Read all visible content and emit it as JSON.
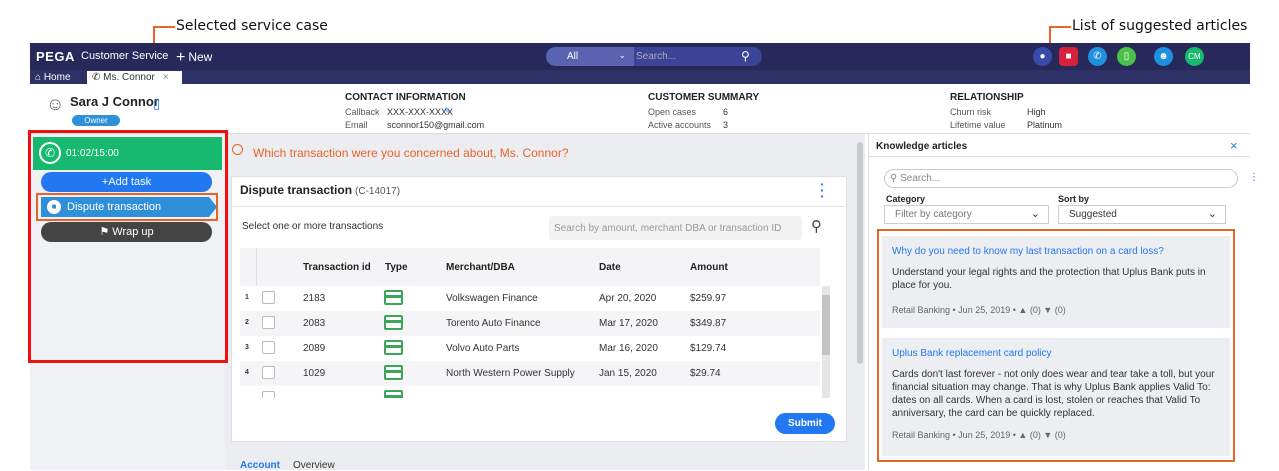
{
  "callouts": {
    "selected_case": "Selected service case",
    "suggested_articles": "List of suggested articles"
  },
  "topbar": {
    "logo": "PEGA",
    "app_name": "Customer Service",
    "new_label": "New",
    "search_scope": "All",
    "search_placeholder": "Search...",
    "user_initials": "CM"
  },
  "tabs": {
    "home": "Home",
    "customer": "Ms. Connor"
  },
  "customer": {
    "name": "Sara J Connor",
    "badge": "Owner"
  },
  "contact": {
    "heading": "CONTACT INFORMATION",
    "callback_label": "Callback",
    "callback_value": "XXX-XXX-XXXX",
    "email_label": "Email",
    "email_value": "sconnor150@gmail.com"
  },
  "summary": {
    "heading": "CUSTOMER SUMMARY",
    "open_cases_label": "Open cases",
    "open_cases_value": "6",
    "active_accounts_label": "Active accounts",
    "active_accounts_value": "3"
  },
  "relationship": {
    "heading": "RELATIONSHIP",
    "churn_label": "Churn risk",
    "churn_value": "High",
    "lifetime_label": "Lifetime value",
    "lifetime_value": "Platinum"
  },
  "interaction": {
    "timer": "01:02/15:00",
    "add_task": "+Add task",
    "case_name": "Dispute transaction",
    "wrap_up": "Wrap up"
  },
  "main": {
    "prompt": "Which transaction were you concerned about,  Ms. Connor?",
    "case_title": "Dispute transaction",
    "case_id": "(C-14017)",
    "select_label": "Select one or more transactions",
    "search_placeholder": "Search by amount, merchant DBA or transaction ID",
    "columns": [
      "Transaction id",
      "Type",
      "Merchant/DBA",
      "Date",
      "Amount"
    ],
    "rows": [
      {
        "n": "1",
        "id": "2183",
        "merchant": "Volkswagen Finance",
        "date": "Apr 20, 2020",
        "amount": "$259.97"
      },
      {
        "n": "2",
        "id": "2083",
        "merchant": "Torento Auto Finance",
        "date": "Mar 17, 2020",
        "amount": "$349.87"
      },
      {
        "n": "3",
        "id": "2089",
        "merchant": "Volvo Auto Parts",
        "date": "Mar 16, 2020",
        "amount": "$129.74"
      },
      {
        "n": "4",
        "id": "1029",
        "merchant": "North Western Power Supply",
        "date": "Jan 15, 2020",
        "amount": "$29.74"
      }
    ],
    "submit": "Submit",
    "bottom_tabs": [
      "Account",
      "Overview"
    ]
  },
  "knowledge": {
    "title": "Knowledge articles",
    "search_placeholder": "Search...",
    "category_label": "Category",
    "category_placeholder": "Filter by category",
    "sort_label": "Sort by",
    "sort_value": "Suggested",
    "articles": [
      {
        "title": "Why do you need to know my last transaction on a card loss?",
        "body": "Understand your legal rights and the protection that Uplus Bank puts in place for you.",
        "meta": "Retail Banking • Jun 25, 2019 •",
        "likes": "(0)",
        "dislikes": "(0)"
      },
      {
        "title": "Uplus Bank replacement card policy",
        "body": "Cards don't last forever - not only does wear and tear take a toll, but your financial situation may change. That is why Uplus Bank applies Valid To: dates on all cards. When a card is lost, stolen or reaches that Valid To anniversary, the card can be quickly replaced.",
        "meta": "Retail Banking • Jun 25, 2019 •",
        "likes": "(0)",
        "dislikes": "(0)"
      }
    ]
  },
  "colors": {
    "topbar": "#26295a",
    "accent": "#2178f0",
    "timer_green": "#16b96e",
    "highlight_red": "#ee1111",
    "highlight_orange": "#e8632a"
  }
}
